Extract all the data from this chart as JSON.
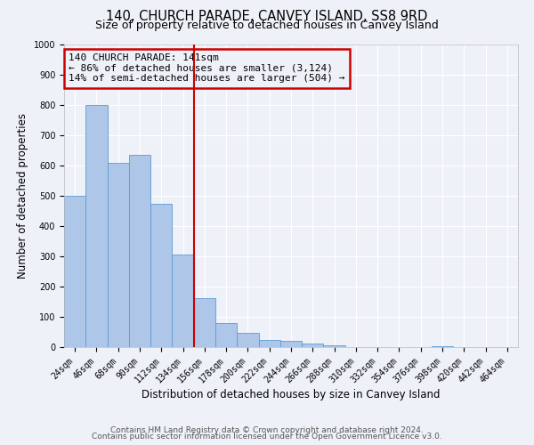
{
  "title": "140, CHURCH PARADE, CANVEY ISLAND, SS8 9RD",
  "subtitle": "Size of property relative to detached houses in Canvey Island",
  "xlabel": "Distribution of detached houses by size in Canvey Island",
  "ylabel": "Number of detached properties",
  "bin_labels": [
    "24sqm",
    "46sqm",
    "68sqm",
    "90sqm",
    "112sqm",
    "134sqm",
    "156sqm",
    "178sqm",
    "200sqm",
    "222sqm",
    "244sqm",
    "266sqm",
    "288sqm",
    "310sqm",
    "332sqm",
    "354sqm",
    "376sqm",
    "398sqm",
    "420sqm",
    "442sqm",
    "464sqm"
  ],
  "bar_values": [
    500,
    800,
    610,
    635,
    475,
    305,
    162,
    78,
    48,
    25,
    20,
    13,
    5,
    0,
    0,
    0,
    0,
    3,
    0,
    0,
    0
  ],
  "bar_color": "#aec6e8",
  "bar_edge_color": "#5b9bd5",
  "vline_x_index": 5.5,
  "vline_color": "#cc0000",
  "annotation_text": "140 CHURCH PARADE: 141sqm\n← 86% of detached houses are smaller (3,124)\n14% of semi-detached houses are larger (504) →",
  "annotation_box_color": "#cc0000",
  "ylim": [
    0,
    1000
  ],
  "yticks": [
    0,
    100,
    200,
    300,
    400,
    500,
    600,
    700,
    800,
    900,
    1000
  ],
  "footer_line1": "Contains HM Land Registry data © Crown copyright and database right 2024.",
  "footer_line2": "Contains public sector information licensed under the Open Government Licence v3.0.",
  "background_color": "#eef2f8",
  "grid_color": "#ffffff",
  "title_fontsize": 10.5,
  "subtitle_fontsize": 9,
  "axis_label_fontsize": 8.5,
  "tick_fontsize": 7,
  "annotation_fontsize": 8,
  "footer_fontsize": 6.5
}
